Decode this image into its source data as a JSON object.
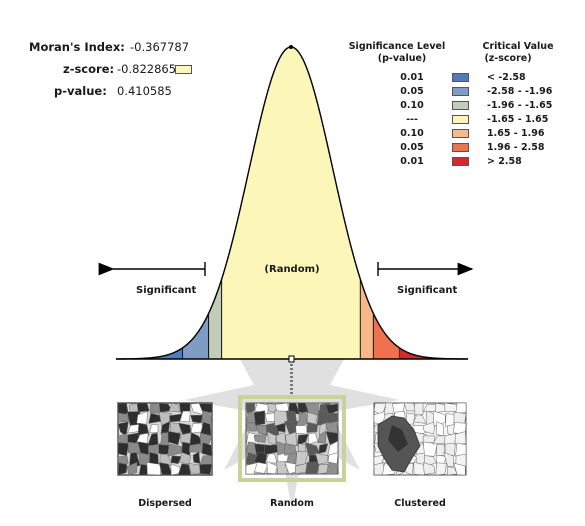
{
  "stats": {
    "morans_index": {
      "label": "Moran's Index:",
      "value": "-0.367787"
    },
    "z_score": {
      "label": "z-score:",
      "value": "-0.822865"
    },
    "p_value": {
      "label": "p-value:",
      "value": "0.410585"
    }
  },
  "legend": {
    "header_p_line1": "Significance Level",
    "header_p_line2": "(p-value)",
    "header_z_line1": "Critical Value",
    "header_z_line2": "(z-score)",
    "rows": [
      {
        "p": "0.01",
        "z": "< -2.58",
        "color": "#4f7bb8"
      },
      {
        "p": "0.05",
        "z": "-2.58 - -1.96",
        "color": "#7e9cc4"
      },
      {
        "p": "0.10",
        "z": "-1.96 - -1.65",
        "color": "#c3cbb9"
      },
      {
        "p": "---",
        "z": "-1.65 - 1.65",
        "color": "#fcf6b9"
      },
      {
        "p": "0.10",
        "z": "1.65 - 1.96",
        "color": "#f8b98a"
      },
      {
        "p": "0.05",
        "z": "1.96 - 2.58",
        "color": "#ee7150"
      },
      {
        "p": "0.01",
        "z": "> 2.58",
        "color": "#d42a2e"
      }
    ]
  },
  "curve": {
    "center_label": "(Random)",
    "left_label": "Significant",
    "right_label": "Significant",
    "z_score_marker": -0.822865
  },
  "maps": [
    {
      "caption": "Dispersed",
      "highlighted": false
    },
    {
      "caption": "Random",
      "highlighted": true
    },
    {
      "caption": "Clustered",
      "highlighted": false
    }
  ],
  "colors": {
    "curve_stroke": "#000000",
    "random_fill": "#fcf6b9",
    "highlight_frame": "#c9d29a"
  }
}
